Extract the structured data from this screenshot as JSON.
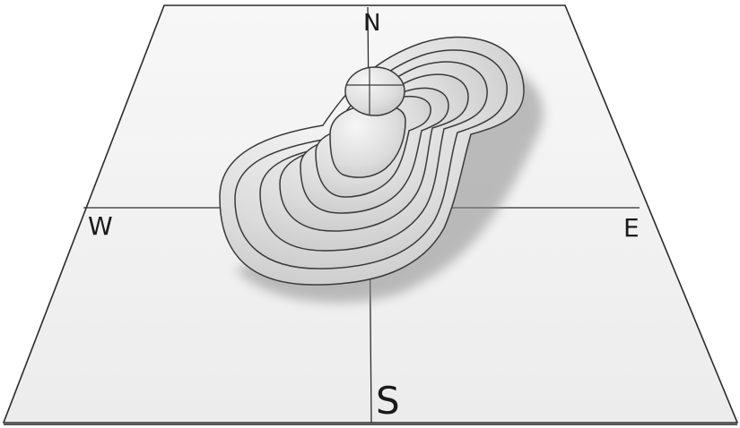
{
  "compass": {
    "north": "N",
    "south": "S",
    "east": "E",
    "west": "W"
  },
  "colors": {
    "paper": "#f4f4f4",
    "paper_edge": "#2b2b2b",
    "grid_line": "#2e2e2e",
    "terrace_fill": "#e2e2e2",
    "terrace_outline": "#3a3a3a",
    "shadow": "#8c8c8c"
  },
  "terrace_levels": 8
}
